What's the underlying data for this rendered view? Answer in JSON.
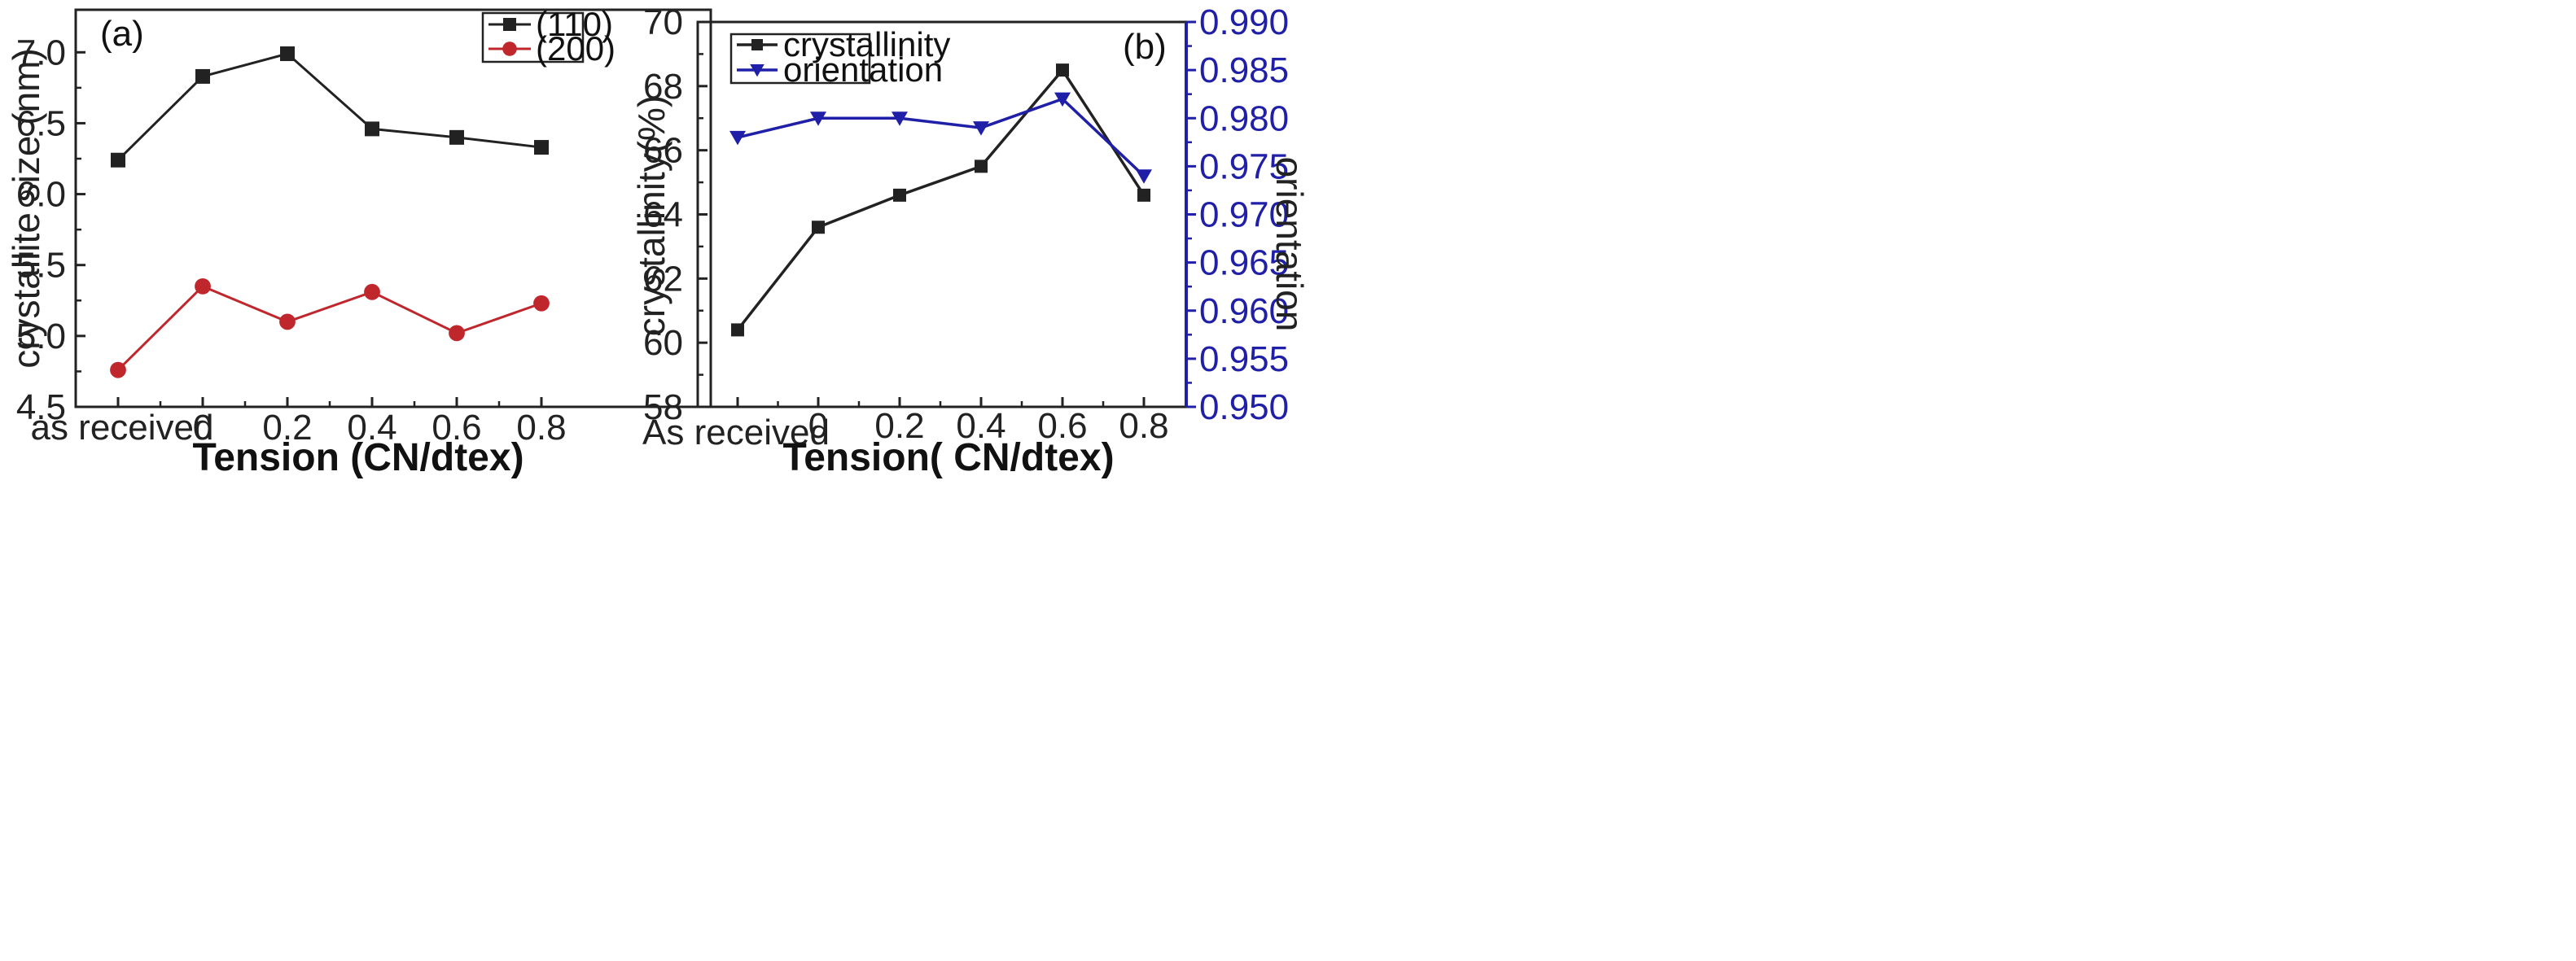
{
  "chart_data": [
    {
      "type": "line",
      "panel_label": "(a)",
      "categories": [
        "as received",
        "0",
        "0.2",
        "0.4",
        "0.6",
        "0.8"
      ],
      "xlabel": "Tension (CN/dtex)",
      "ylabel": "crystallite size (nm)",
      "ylim": [
        4.5,
        7.3
      ],
      "yticks": [
        4.5,
        5.0,
        5.5,
        6.0,
        6.5,
        7.0
      ],
      "ytick_labels": [
        "4.5",
        "5.0",
        "5.5",
        "6.0",
        "6.5",
        "7.0"
      ],
      "legend_position": "top-right",
      "series": [
        {
          "name": "(110)",
          "values": [
            6.24,
            6.83,
            6.99,
            6.46,
            6.4,
            6.33
          ],
          "color": "#222222",
          "marker": "square"
        },
        {
          "name": "(200)",
          "values": [
            4.76,
            5.35,
            5.1,
            5.31,
            5.02,
            5.23
          ],
          "color": "#c0272d",
          "marker": "circle"
        }
      ]
    },
    {
      "type": "line",
      "panel_label": "(b)",
      "categories": [
        "As received",
        "0",
        "0.2",
        "0.4",
        "0.6",
        "0.8"
      ],
      "xlabel": "Tension( CN/dtex)",
      "ylabel": "crystallinity(%)",
      "ylabel_right": "orientation",
      "ylim": [
        58,
        70
      ],
      "ylim_right": [
        0.95,
        0.99
      ],
      "yticks": [
        58,
        60,
        62,
        64,
        66,
        68,
        70
      ],
      "ytick_labels": [
        "58",
        "60",
        "62",
        "64",
        "66",
        "68",
        "70"
      ],
      "yticks_right": [
        0.95,
        0.955,
        0.96,
        0.965,
        0.97,
        0.975,
        0.98,
        0.985,
        0.99
      ],
      "ytick_labels_right": [
        "0.950",
        "0.955",
        "0.960",
        "0.965",
        "0.970",
        "0.975",
        "0.980",
        "0.985",
        "0.990"
      ],
      "legend_position": "top-left",
      "series": [
        {
          "name": "crystallinity",
          "axis": "left",
          "values": [
            60.4,
            63.6,
            64.6,
            65.5,
            68.5,
            64.6
          ],
          "color": "#222222",
          "marker": "square"
        },
        {
          "name": "orientation",
          "axis": "right",
          "values": [
            0.978,
            0.98,
            0.98,
            0.979,
            0.982,
            0.974
          ],
          "color": "#1f1fa8",
          "marker": "triangle-down"
        }
      ]
    }
  ]
}
